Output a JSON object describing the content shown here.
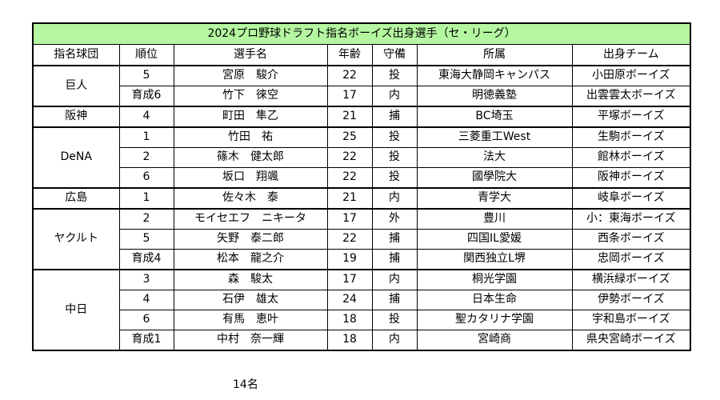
{
  "title": "2024プロ野球ドラフト指名ボーイズ出身選手（セ・リーグ）",
  "headers": [
    "指名球団",
    "順位",
    "選手名",
    "年齢",
    "守備",
    "所属",
    "出身チーム"
  ],
  "groups": [
    {
      "team": "巨人",
      "rows": [
        {
          "rank": "5",
          "name": "宮原　駿介",
          "age": "22",
          "pos": "投",
          "affil": "東海大静岡キャンパス",
          "origin": "小田原ボーイズ"
        },
        {
          "rank": "育成6",
          "name": "竹下　徠空",
          "age": "17",
          "pos": "内",
          "affil": "明徳義塾",
          "origin": "出雲雲太ボーイズ"
        }
      ]
    },
    {
      "team": "阪神",
      "rows": [
        {
          "rank": "4",
          "name": "町田　隼乙",
          "age": "21",
          "pos": "捕",
          "affil": "BC埼玉",
          "origin": "平塚ボーイズ"
        }
      ]
    },
    {
      "team": "DeNA",
      "rows": [
        {
          "rank": "1",
          "name": "竹田　祐",
          "age": "25",
          "pos": "投",
          "affil": "三菱重工West",
          "origin": "生駒ボーイズ"
        },
        {
          "rank": "2",
          "name": "篠木　健太郎",
          "age": "22",
          "pos": "投",
          "affil": "法大",
          "origin": "館林ボーイズ"
        },
        {
          "rank": "6",
          "name": "坂口　翔颯",
          "age": "22",
          "pos": "投",
          "affil": "國學院大",
          "origin": "阪神ボーイズ"
        }
      ]
    },
    {
      "team": "広島",
      "rows": [
        {
          "rank": "1",
          "name": "佐々木　泰",
          "age": "21",
          "pos": "内",
          "affil": "青学大",
          "origin": "岐阜ボーイズ"
        }
      ]
    },
    {
      "team": "ヤクルト",
      "rows": [
        {
          "rank": "2",
          "name": "モイセエフ　ニキータ",
          "age": "17",
          "pos": "外",
          "affil": "豊川",
          "origin": "小：東海ボーイズ"
        },
        {
          "rank": "5",
          "name": "矢野　泰二郎",
          "age": "22",
          "pos": "捕",
          "affil": "四国IL愛媛",
          "origin": "西条ボーイズ"
        },
        {
          "rank": "育成4",
          "name": "松本　龍之介",
          "age": "19",
          "pos": "捕",
          "affil": "関西独立L堺",
          "origin": "忠岡ボーイズ"
        }
      ]
    },
    {
      "team": "中日",
      "rows": [
        {
          "rank": "3",
          "name": "森　駿太",
          "age": "17",
          "pos": "内",
          "affil": "桐光学園",
          "origin": "横浜緑ボーイズ"
        },
        {
          "rank": "4",
          "name": "石伊　雄太",
          "age": "24",
          "pos": "捕",
          "affil": "日本生命",
          "origin": "伊勢ボーイズ"
        },
        {
          "rank": "6",
          "name": "有馬　恵叶",
          "age": "18",
          "pos": "投",
          "affil": "聖カタリナ学園",
          "origin": "宇和島ボーイズ"
        },
        {
          "rank": "育成1",
          "name": "中村　奈一輝",
          "age": "18",
          "pos": "内",
          "affil": "宮崎商",
          "origin": "県央宮崎ボーイズ"
        }
      ]
    }
  ],
  "footer": {
    "count": "14名"
  },
  "colors": {
    "title_bg": "#b5f7a1",
    "border": "#000000"
  }
}
